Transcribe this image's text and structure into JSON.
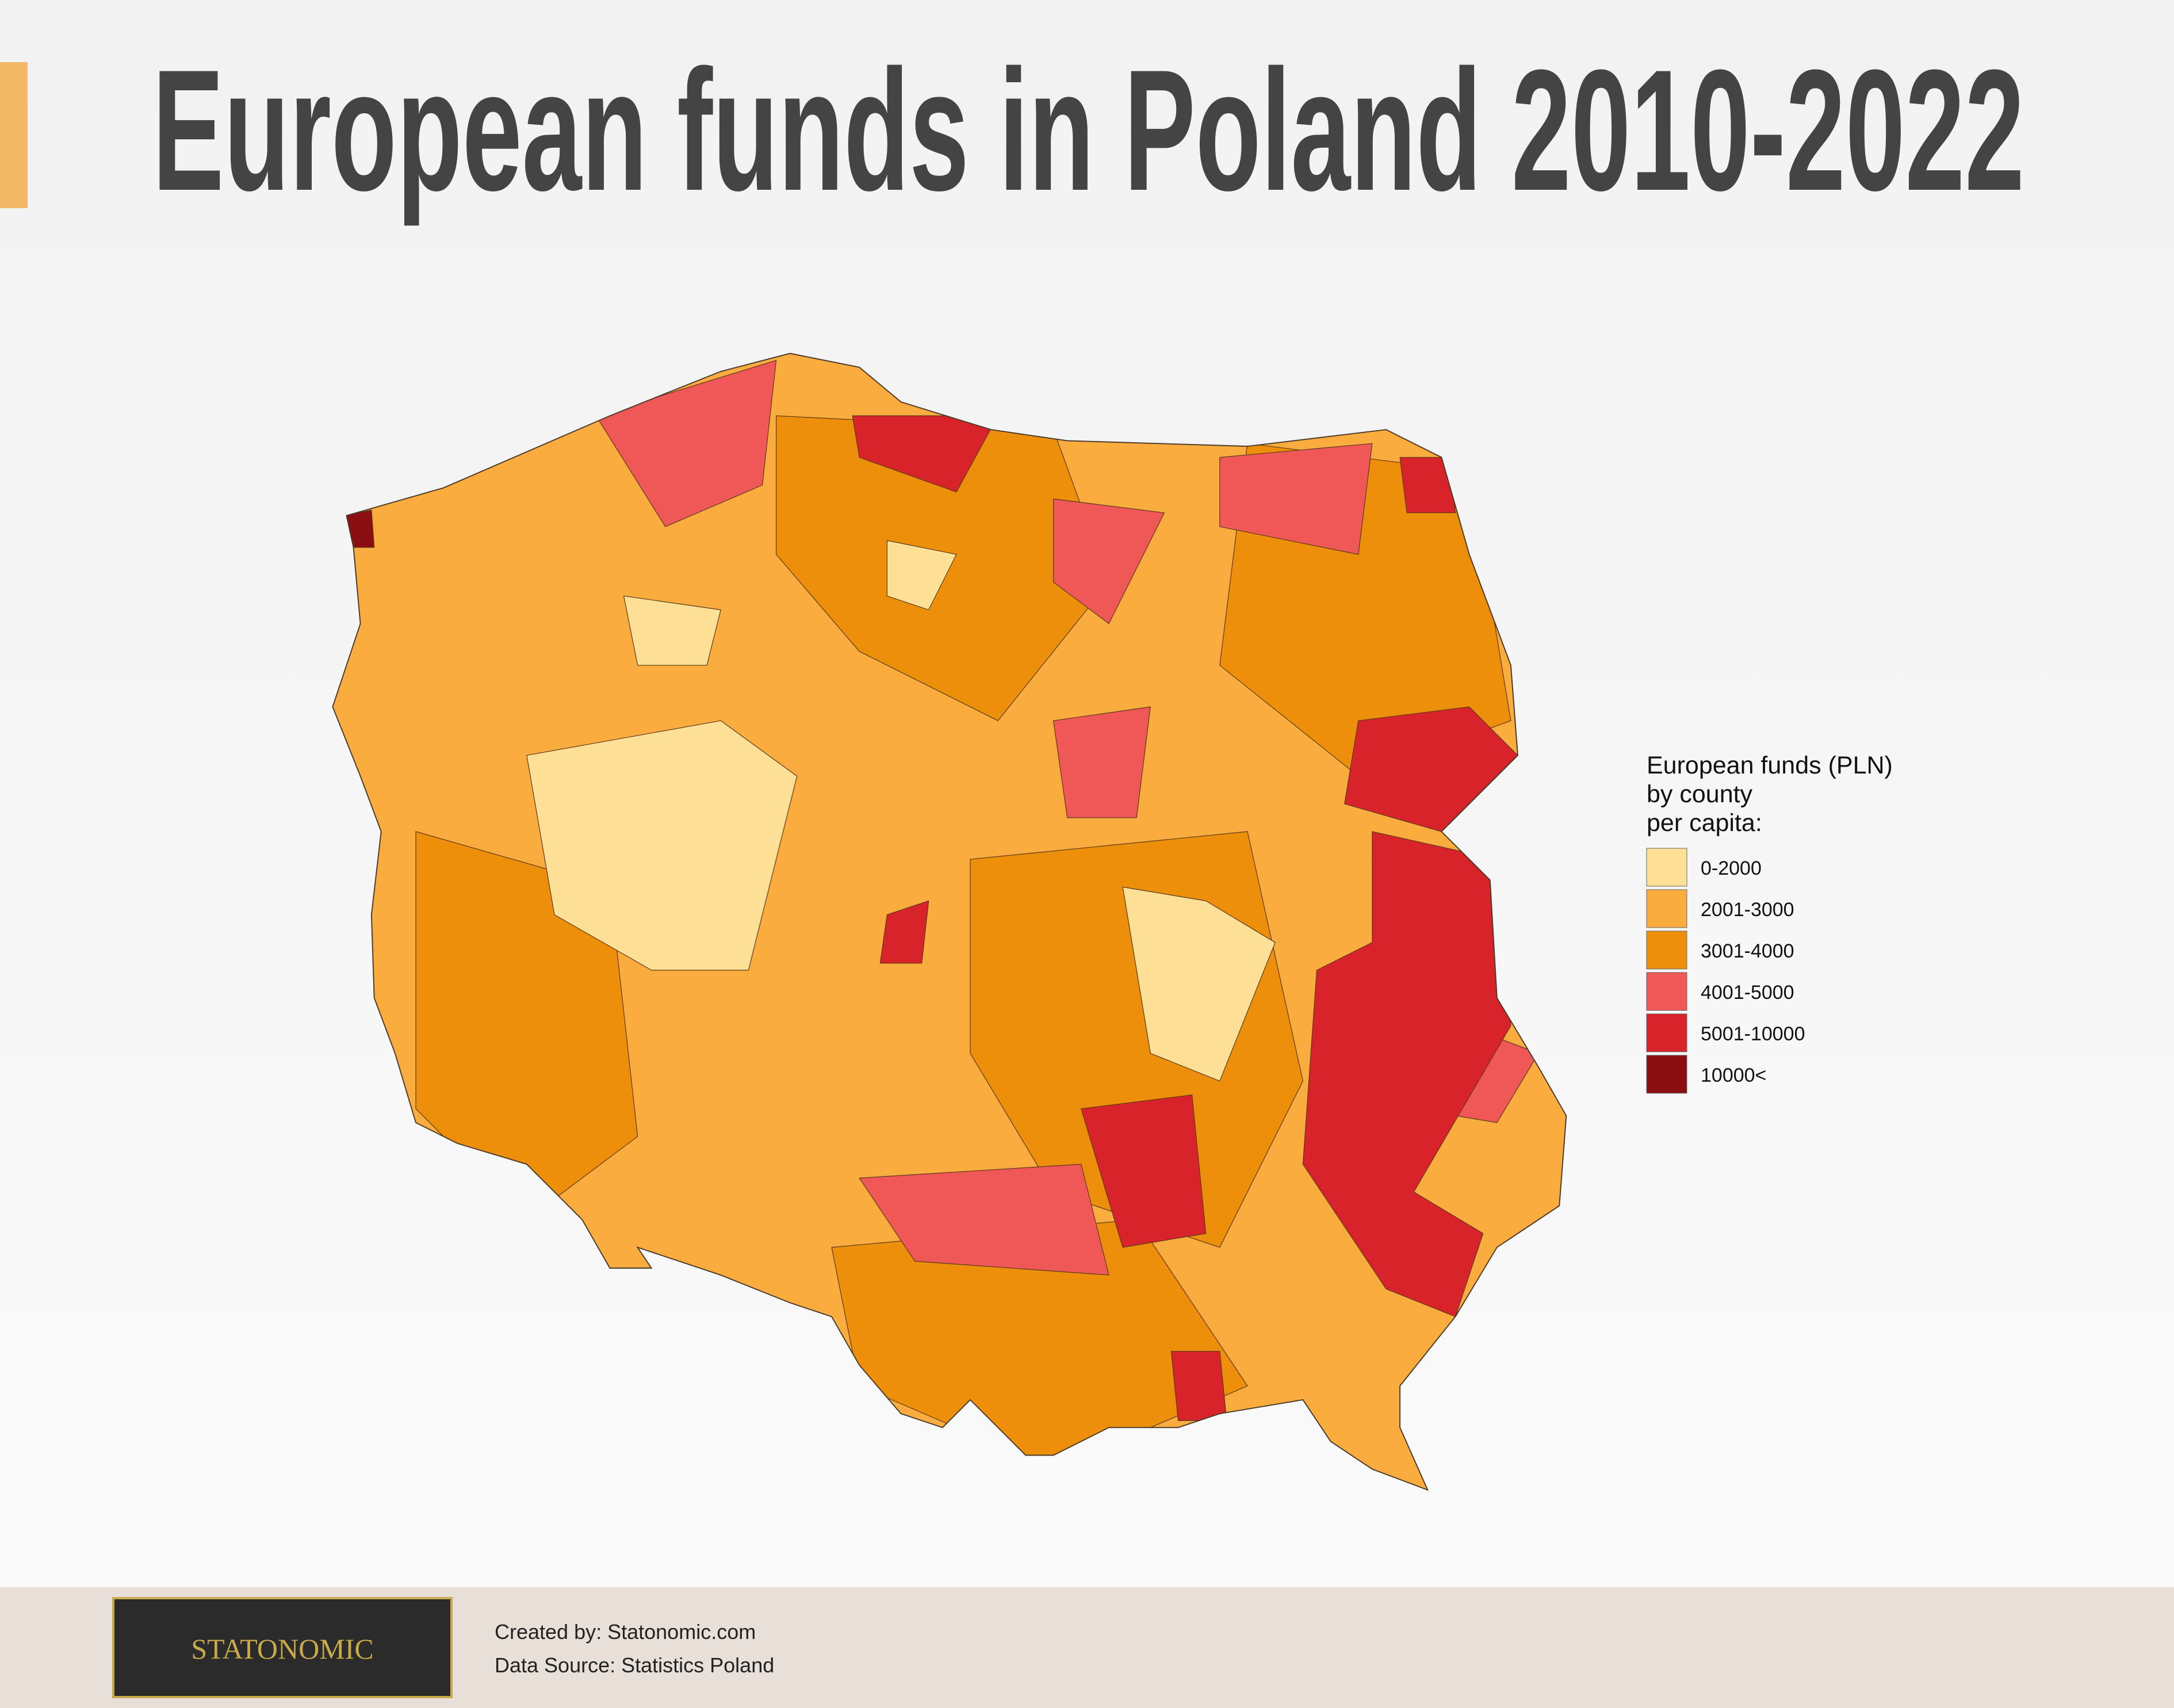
{
  "header": {
    "title": "European funds in Poland 2010-2022"
  },
  "legend": {
    "title_lines": [
      "European funds (PLN)",
      "by county",
      "per capita:"
    ],
    "items": [
      {
        "label": "0-2000",
        "color": "#fde096"
      },
      {
        "label": "2001-3000",
        "color": "#fbac3f"
      },
      {
        "label": "3001-4000",
        "color": "#ee8f0c"
      },
      {
        "label": "4001-5000",
        "color": "#f05757"
      },
      {
        "label": "5001-10000",
        "color": "#d8232a"
      },
      {
        "label": "10000<",
        "color": "#8a0e12"
      }
    ]
  },
  "footer": {
    "logo": "STATONOMIC",
    "credits": [
      "Created by: Statonomic.com",
      "Data Source: Statistics Poland"
    ]
  }
}
